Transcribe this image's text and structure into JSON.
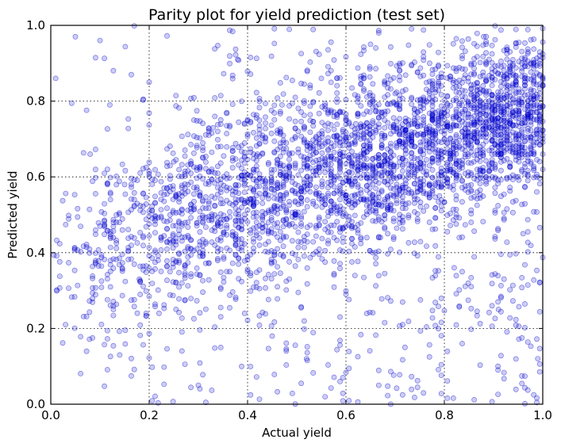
{
  "chart_data": {
    "type": "scatter",
    "title": "Parity plot for yield prediction (test set)",
    "xlabel": "Actual yield",
    "ylabel": "Predicted yield",
    "xlim": [
      0.0,
      1.0
    ],
    "ylim": [
      0.0,
      1.0
    ],
    "xticks": [
      "0.0",
      "0.2",
      "0.4",
      "0.6",
      "0.8",
      "1.0"
    ],
    "yticks": [
      "0.0",
      "0.2",
      "0.4",
      "0.6",
      "0.8",
      "1.0"
    ],
    "grid": true,
    "grid_style": "dotted",
    "legend": "none",
    "marker_color": "#0000cc",
    "marker_fill_alpha": 0.2,
    "series": [
      {
        "points_sample": [
          [
            0.01,
            0.86
          ],
          [
            0.03,
            0.21
          ],
          [
            0.05,
            0.97
          ],
          [
            0.08,
            0.66
          ],
          [
            0.1,
            0.47
          ],
          [
            0.1,
            0.96
          ],
          [
            0.12,
            0.79
          ],
          [
            0.14,
            0.13
          ],
          [
            0.15,
            0.58
          ],
          [
            0.18,
            0.33
          ],
          [
            0.2,
            0.85
          ],
          [
            0.22,
            0.24
          ],
          [
            0.25,
            0.64
          ],
          [
            0.28,
            0.44
          ],
          [
            0.3,
            0.05
          ],
          [
            0.33,
            0.73
          ],
          [
            0.35,
            0.53
          ],
          [
            0.38,
            0.91
          ],
          [
            0.4,
            0.35
          ],
          [
            0.42,
            0.66
          ],
          [
            0.45,
            0.18
          ],
          [
            0.47,
            0.79
          ],
          [
            0.5,
            0.5
          ],
          [
            0.52,
            0.12
          ],
          [
            0.55,
            0.86
          ],
          [
            0.57,
            0.62
          ],
          [
            0.6,
            0.29
          ],
          [
            0.62,
            0.74
          ],
          [
            0.65,
            0.95
          ],
          [
            0.67,
            0.44
          ],
          [
            0.7,
            0.82
          ],
          [
            0.72,
            0.15
          ],
          [
            0.74,
            0.68
          ],
          [
            0.77,
            0.9
          ],
          [
            0.79,
            0.55
          ],
          [
            0.8,
            0.78
          ],
          [
            0.82,
            0.36
          ],
          [
            0.84,
            0.86
          ],
          [
            0.86,
            0.64
          ],
          [
            0.88,
            0.97
          ],
          [
            0.9,
            0.72
          ],
          [
            0.91,
            0.25
          ],
          [
            0.93,
            0.84
          ],
          [
            0.95,
            0.6
          ],
          [
            0.97,
            0.93
          ],
          [
            0.98,
            0.77
          ],
          [
            1.0,
            0.66
          ],
          [
            1.0,
            0.86
          ],
          [
            0.96,
            0.45
          ],
          [
            0.99,
            0.12
          ]
        ]
      }
    ]
  }
}
